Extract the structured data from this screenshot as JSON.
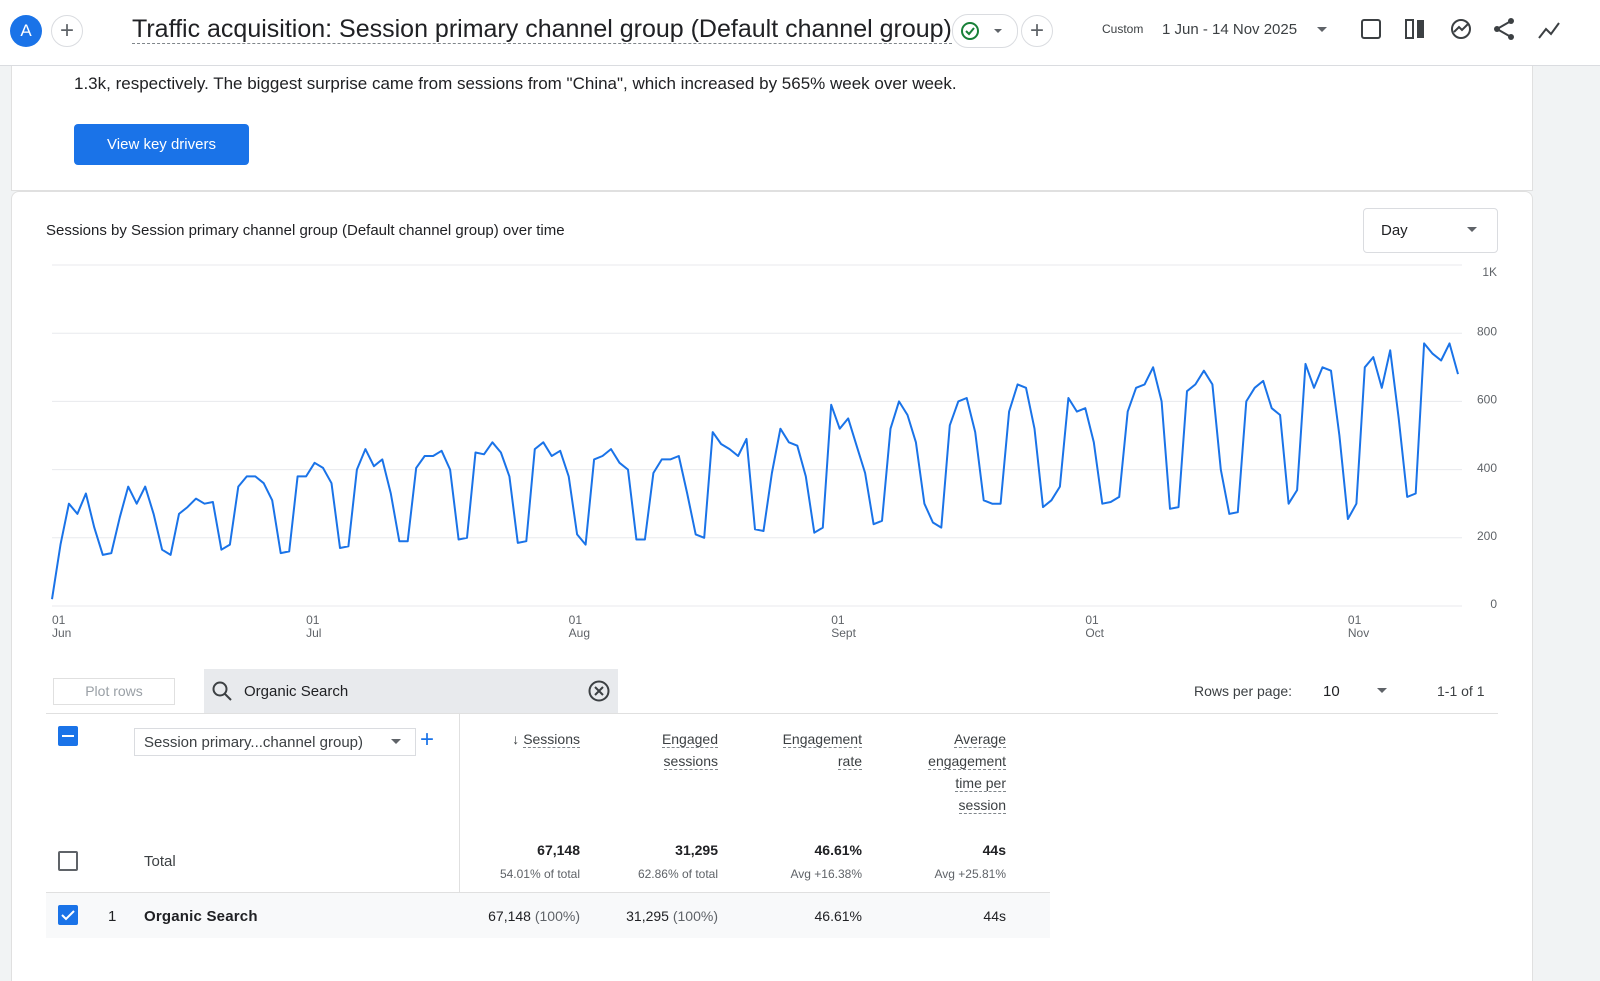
{
  "header": {
    "avatar": "A",
    "title": "Traffic acquisition: Session primary channel group (Default channel group)",
    "date_label": "Custom",
    "date_range": "1 Jun - 14 Nov 2025"
  },
  "insight": {
    "text": "1.3k, respectively. The biggest surprise came from sessions from \"China\", which increased by 565% week over week.",
    "button": "View key drivers"
  },
  "controls": {
    "interval": "Day"
  },
  "chart_data": {
    "type": "line",
    "title": "Sessions by Session primary channel group (Default channel group) over time",
    "color": "#1a73e8",
    "grid": true,
    "ylim": [
      0,
      1000
    ],
    "yticks": [
      0,
      200,
      400,
      600,
      800,
      {
        "value": 1000,
        "label": "1K"
      }
    ],
    "categories": [
      "01 Jun",
      null,
      null,
      null,
      null,
      null,
      null,
      null,
      null,
      null,
      null,
      null,
      null,
      null,
      null,
      null,
      null,
      null,
      null,
      null,
      null,
      null,
      null,
      null,
      null,
      null,
      null,
      null,
      null,
      null,
      "01 Jul",
      null,
      null,
      null,
      null,
      null,
      null,
      null,
      null,
      null,
      null,
      null,
      null,
      null,
      null,
      null,
      null,
      null,
      null,
      null,
      null,
      null,
      null,
      null,
      null,
      null,
      null,
      null,
      null,
      null,
      null,
      "01 Aug",
      null,
      null,
      null,
      null,
      null,
      null,
      null,
      null,
      null,
      null,
      null,
      null,
      null,
      null,
      null,
      null,
      null,
      null,
      null,
      null,
      null,
      null,
      null,
      null,
      null,
      null,
      null,
      null,
      null,
      null,
      "01 Sept",
      null,
      null,
      null,
      null,
      null,
      null,
      null,
      null,
      null,
      null,
      null,
      null,
      null,
      null,
      null,
      null,
      null,
      null,
      null,
      null,
      null,
      null,
      null,
      null,
      null,
      null,
      null,
      null,
      null,
      "01 Oct",
      null,
      null,
      null,
      null,
      null,
      null,
      null,
      null,
      null,
      null,
      null,
      null,
      null,
      null,
      null,
      null,
      null,
      null,
      null,
      null,
      null,
      null,
      null,
      null,
      null,
      null,
      null,
      null,
      null,
      null,
      "01 Nov",
      null,
      null,
      null,
      null,
      null,
      null,
      null,
      null,
      null,
      null,
      null,
      null,
      null
    ],
    "values": [
      20,
      180,
      300,
      270,
      330,
      230,
      150,
      155,
      260,
      350,
      300,
      350,
      270,
      165,
      150,
      270,
      290,
      315,
      300,
      305,
      165,
      180,
      350,
      380,
      380,
      360,
      310,
      155,
      160,
      380,
      380,
      420,
      405,
      360,
      170,
      175,
      400,
      460,
      410,
      430,
      330,
      190,
      190,
      405,
      440,
      440,
      455,
      400,
      195,
      200,
      450,
      445,
      480,
      450,
      380,
      185,
      190,
      460,
      480,
      440,
      455,
      380,
      210,
      180,
      430,
      440,
      460,
      420,
      400,
      195,
      195,
      390,
      430,
      430,
      440,
      330,
      210,
      200,
      510,
      475,
      460,
      440,
      490,
      225,
      220,
      390,
      520,
      480,
      470,
      380,
      215,
      230,
      590,
      520,
      550,
      470,
      390,
      240,
      250,
      520,
      600,
      560,
      480,
      300,
      245,
      230,
      530,
      600,
      610,
      510,
      310,
      300,
      300,
      570,
      650,
      640,
      520,
      290,
      310,
      350,
      610,
      570,
      580,
      480,
      300,
      305,
      320,
      570,
      640,
      650,
      700,
      600,
      285,
      290,
      630,
      650,
      690,
      650,
      400,
      270,
      275,
      600,
      640,
      660,
      580,
      560,
      300,
      340,
      710,
      640,
      700,
      690,
      500,
      255,
      300,
      700,
      730,
      640,
      750,
      550,
      320,
      330,
      770,
      740,
      720,
      770,
      680
    ]
  },
  "table": {
    "plot_rows": "Plot rows",
    "search": "Organic Search",
    "rows_per_page_label": "Rows per page:",
    "rows_per_page": 10,
    "pagination": "1-1 of 1",
    "dimension": "Session primary...channel group)",
    "columns": [
      [
        "Sessions"
      ],
      [
        "Engaged",
        "sessions"
      ],
      [
        "Engagement",
        "rate"
      ],
      [
        "Average",
        "engagement",
        "time per",
        "session"
      ]
    ],
    "total": {
      "label": "Total",
      "values": [
        "67,148",
        "31,295",
        "46.61%",
        "44s"
      ],
      "notes": [
        "54.01% of total",
        "62.86% of total",
        "Avg +16.38%",
        "Avg +25.81%"
      ]
    },
    "rows": [
      {
        "index": 1,
        "name": "Organic Search",
        "values": [
          [
            "67,148",
            "(100%)"
          ],
          [
            "31,295",
            "(100%)"
          ],
          [
            "46.61%"
          ],
          [
            "44s"
          ]
        ]
      }
    ]
  }
}
